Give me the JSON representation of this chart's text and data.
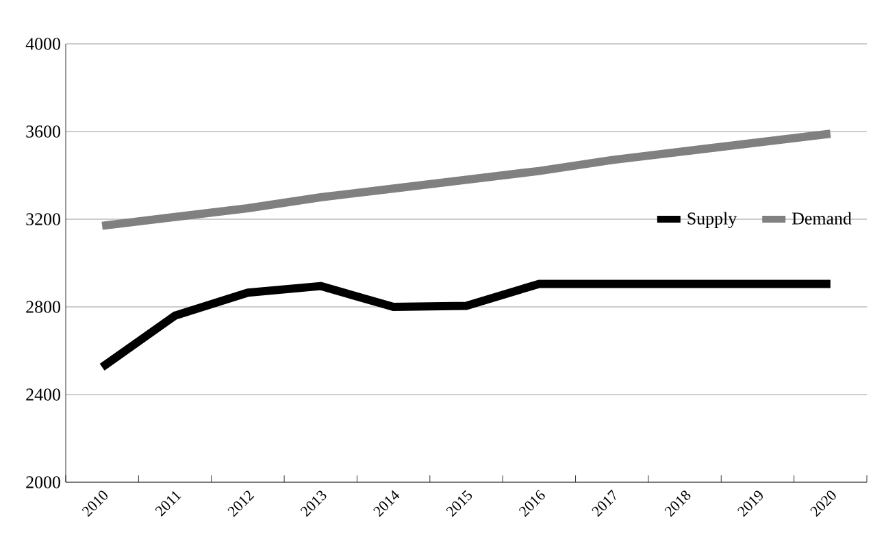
{
  "chart_data": {
    "type": "line",
    "categories": [
      "2010",
      "2011",
      "2012",
      "2013",
      "2014",
      "2015",
      "2016",
      "2017",
      "2018",
      "2019",
      "2020"
    ],
    "series": [
      {
        "name": "Supply",
        "color": "#000000",
        "values": [
          2525,
          2760,
          2865,
          2895,
          2800,
          2805,
          2905,
          2905,
          2905,
          2905,
          2905
        ]
      },
      {
        "name": "Demand",
        "color": "#808080",
        "values": [
          3170,
          3210,
          3250,
          3300,
          3340,
          3380,
          3420,
          3470,
          3510,
          3550,
          3590
        ]
      }
    ],
    "ylim": [
      2000,
      4000
    ],
    "yticks": [
      2000,
      2400,
      2800,
      3200,
      3600,
      4000
    ],
    "grid": "y",
    "legend": "right",
    "marker": "none",
    "line_style": "solid"
  }
}
